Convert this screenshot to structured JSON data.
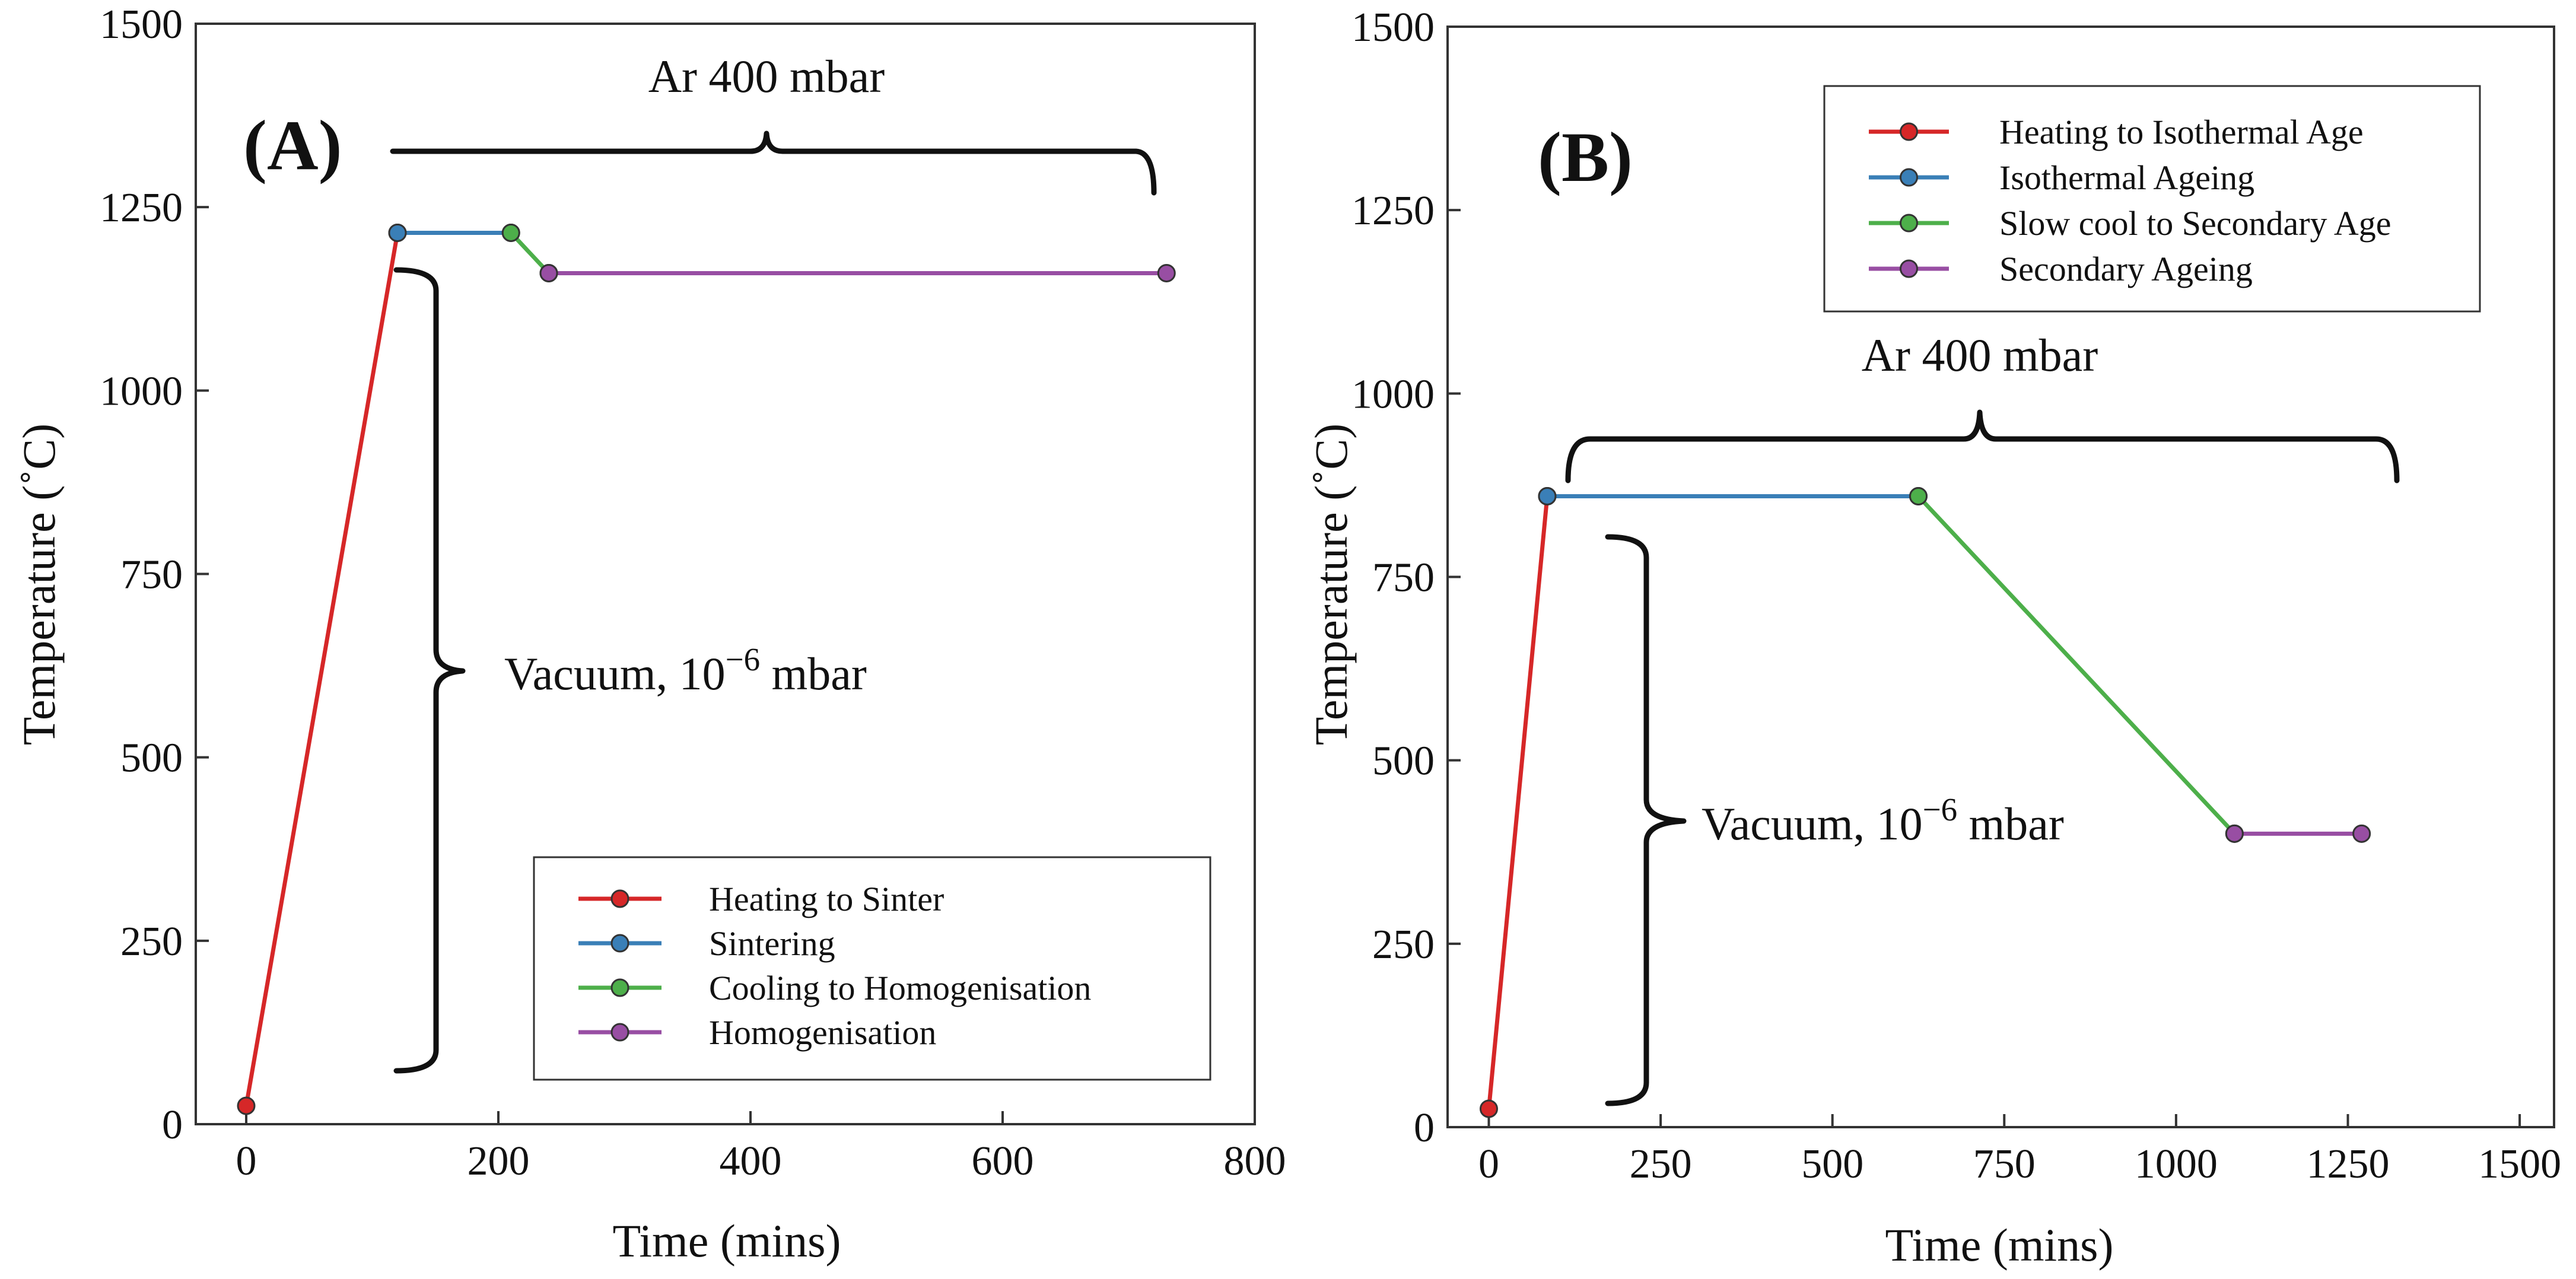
{
  "chart_data": [
    {
      "type": "line",
      "panel_label": "(A)",
      "xlabel": "Time (mins)",
      "ylabel": "Temperature (˚C)",
      "xlim": [
        -40,
        800
      ],
      "ylim": [
        0,
        1500
      ],
      "x_ticks": [
        0,
        200,
        400,
        600,
        800
      ],
      "y_ticks": [
        0,
        250,
        500,
        750,
        1000,
        1250,
        1500
      ],
      "legend_position": "bottom-right",
      "series": [
        {
          "name": "Heating to Sinter",
          "color": "#d62728",
          "x": [
            0,
            120
          ],
          "y": [
            25,
            1215
          ]
        },
        {
          "name": "Sintering",
          "color": "#3a7fb7",
          "x": [
            120,
            210
          ],
          "y": [
            1215,
            1215
          ]
        },
        {
          "name": "Cooling to Homogenisation",
          "color": "#4daf4a",
          "x": [
            210,
            240
          ],
          "y": [
            1215,
            1160
          ]
        },
        {
          "name": "Homogenisation",
          "color": "#984ea3",
          "x": [
            240,
            730
          ],
          "y": [
            1160,
            1160
          ]
        }
      ],
      "annotations": {
        "atmosphere": "Ar 400 mbar",
        "vacuum_prefix": "Vacuum, 10",
        "vacuum_exponent": "−6",
        "vacuum_suffix": " mbar"
      }
    },
    {
      "type": "line",
      "panel_label": "(B)",
      "xlabel": "Time (mins)",
      "ylabel": "Temperature (˚C)",
      "xlim": [
        -60,
        1550
      ],
      "ylim": [
        0,
        1500
      ],
      "x_ticks": [
        0,
        250,
        500,
        750,
        1000,
        1250,
        1500
      ],
      "y_ticks": [
        0,
        250,
        500,
        750,
        1000,
        1250,
        1500
      ],
      "legend_position": "top-right",
      "series": [
        {
          "name": "Heating to Isothermal Age",
          "color": "#d62728",
          "x": [
            0,
            85
          ],
          "y": [
            25,
            860
          ]
        },
        {
          "name": "Isothermal Ageing",
          "color": "#3a7fb7",
          "x": [
            85,
            625
          ],
          "y": [
            860,
            860
          ]
        },
        {
          "name": "Slow cool to Secondary Age",
          "color": "#4daf4a",
          "x": [
            625,
            1085
          ],
          "y": [
            860,
            400
          ]
        },
        {
          "name": "Secondary Ageing",
          "color": "#984ea3",
          "x": [
            1085,
            1270
          ],
          "y": [
            400,
            400
          ]
        }
      ],
      "annotations": {
        "atmosphere": "Ar 400 mbar",
        "vacuum_prefix": "Vacuum, 10",
        "vacuum_exponent": "−6",
        "vacuum_suffix": " mbar"
      }
    }
  ]
}
